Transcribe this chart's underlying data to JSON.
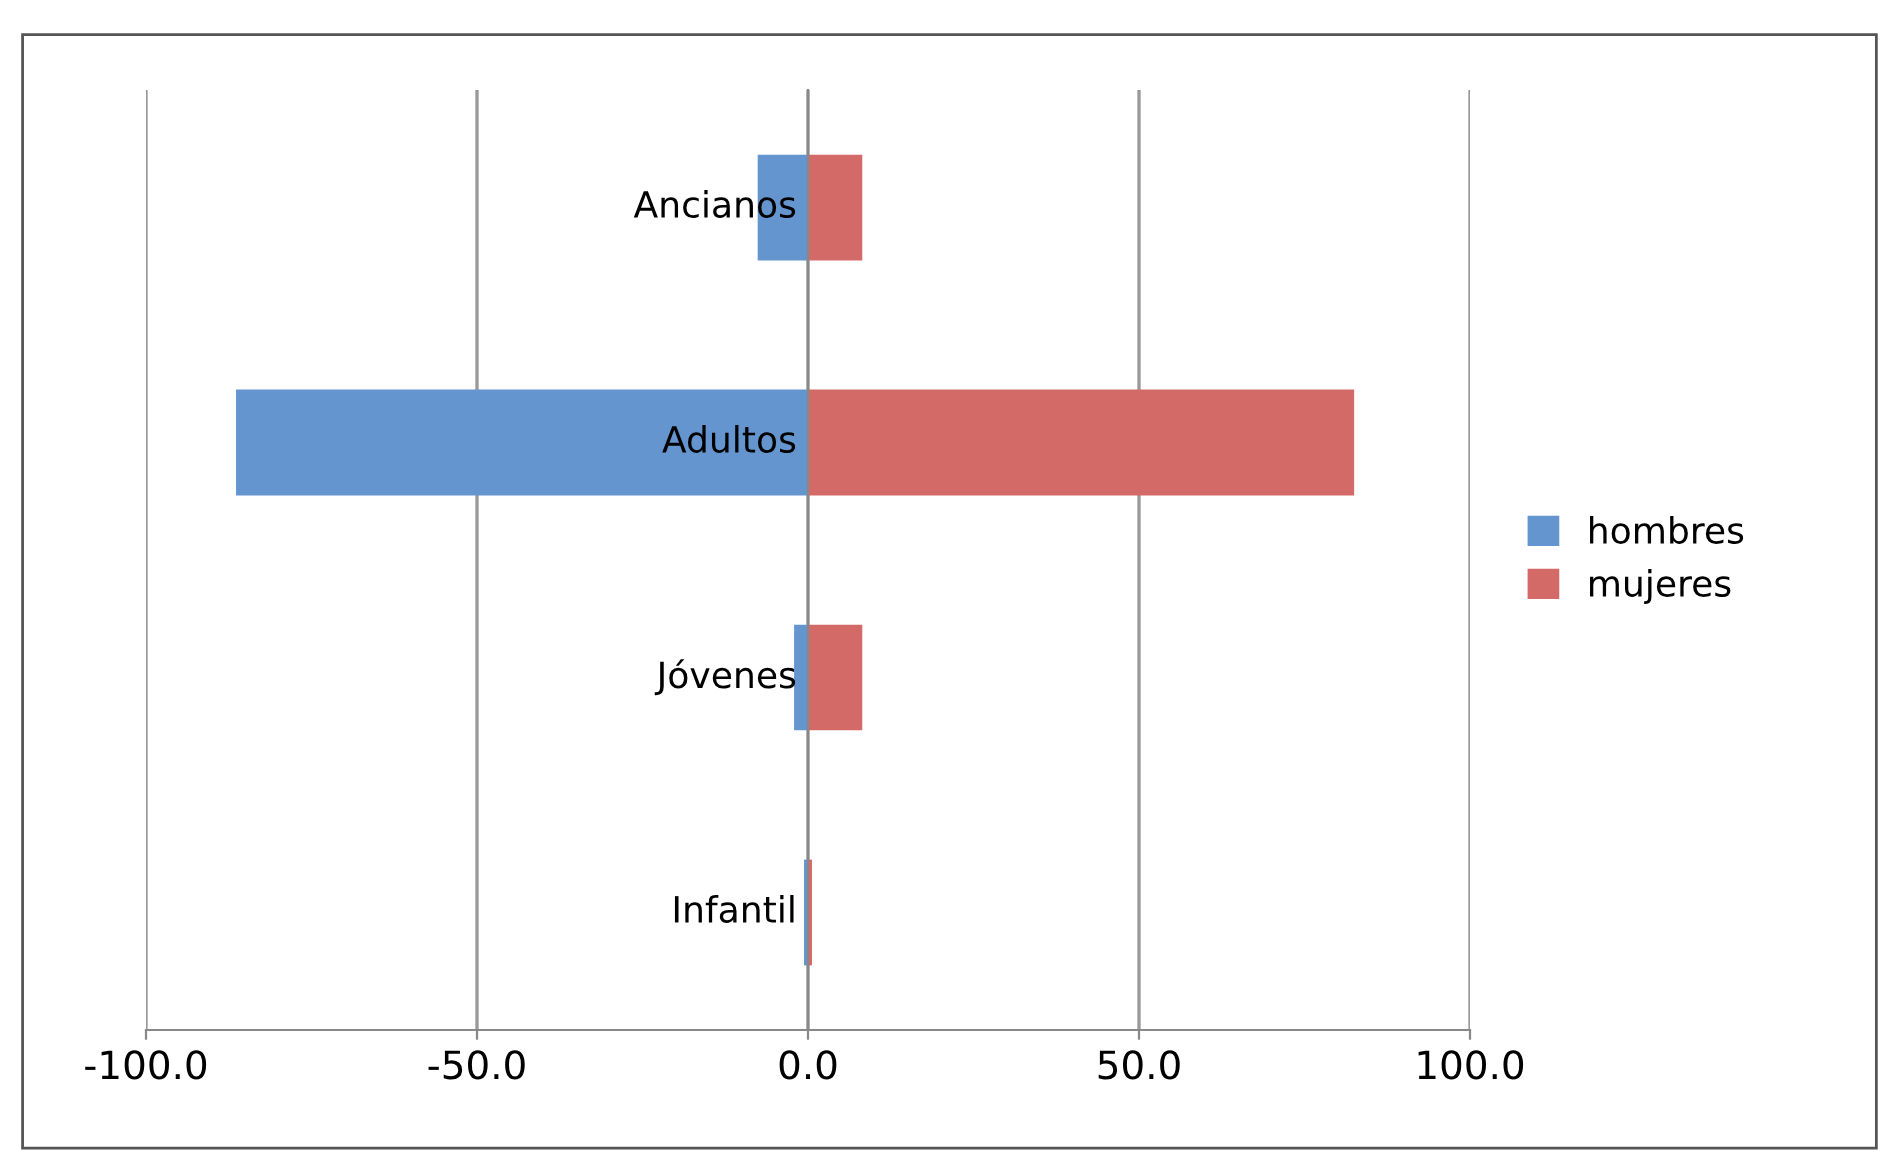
{
  "chart_data": {
    "type": "bar",
    "orientation": "horizontal",
    "categories": [
      "Ancianos",
      "Adultos",
      "Jóvenes",
      "Infantil"
    ],
    "series": [
      {
        "name": "hombres",
        "color": "#6495cf",
        "values": [
          -7.6,
          -86.4,
          -2.1,
          -0.6
        ]
      },
      {
        "name": "mujeres",
        "color": "#d46a68",
        "values": [
          8.2,
          82.5,
          8.2,
          0.6
        ]
      }
    ],
    "xlim": [
      -100,
      100
    ],
    "xticks": [
      {
        "value": -100,
        "label": "-100.0"
      },
      {
        "value": -50,
        "label": "-50.0"
      },
      {
        "value": 0,
        "label": "0.0"
      },
      {
        "value": 50,
        "label": "50.0"
      },
      {
        "value": 100,
        "label": "100.0"
      }
    ],
    "grid": "x",
    "legend": "right",
    "stacked": true
  }
}
